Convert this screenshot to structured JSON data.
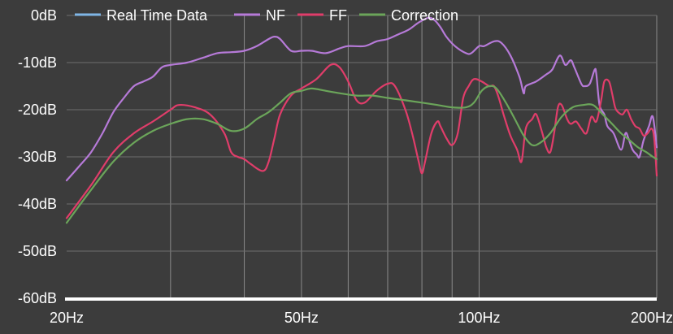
{
  "chart_data": {
    "type": "line",
    "x_scale": "log",
    "xlim": [
      20,
      200
    ],
    "ylim": [
      -60,
      0
    ],
    "y_ticks": [
      0,
      -10,
      -20,
      -30,
      -40,
      -50,
      -60
    ],
    "y_tick_labels": [
      "0dB",
      "-10dB",
      "-20dB",
      "-30dB",
      "-40dB",
      "-50dB",
      "-60dB"
    ],
    "x_tick_labels": [
      {
        "x": 20,
        "label": "20Hz"
      },
      {
        "x": 50,
        "label": "50Hz"
      },
      {
        "x": 100,
        "label": "100Hz"
      },
      {
        "x": 200,
        "label": "200Hz"
      }
    ],
    "x_gridlines": [
      30,
      40,
      50,
      60,
      70,
      80,
      90,
      100,
      200
    ],
    "grid": true,
    "legend_position": "top",
    "series": [
      {
        "name": "Real Time Data",
        "color": "#7fb6e6",
        "points": []
      },
      {
        "name": "NF",
        "color": "#b67ad8",
        "points": [
          [
            20,
            -35
          ],
          [
            21,
            -32
          ],
          [
            22,
            -29
          ],
          [
            23,
            -25
          ],
          [
            24,
            -20.5
          ],
          [
            25,
            -17.5
          ],
          [
            26,
            -15
          ],
          [
            27,
            -14
          ],
          [
            28,
            -13
          ],
          [
            29,
            -11
          ],
          [
            30,
            -10.5
          ],
          [
            32,
            -10
          ],
          [
            34,
            -9
          ],
          [
            36,
            -8
          ],
          [
            38,
            -7.8
          ],
          [
            40,
            -7.5
          ],
          [
            42,
            -6.5
          ],
          [
            44,
            -5
          ],
          [
            45,
            -4.5
          ],
          [
            46,
            -5
          ],
          [
            48,
            -7.5
          ],
          [
            50,
            -7.5
          ],
          [
            52,
            -7.5
          ],
          [
            55,
            -8
          ],
          [
            58,
            -7
          ],
          [
            60,
            -6.5
          ],
          [
            64,
            -6.5
          ],
          [
            67,
            -5.5
          ],
          [
            70,
            -5
          ],
          [
            73,
            -4
          ],
          [
            76,
            -3
          ],
          [
            79,
            -1.5
          ],
          [
            82,
            -0.5
          ],
          [
            84,
            -1
          ],
          [
            86,
            -2.5
          ],
          [
            88,
            -4.5
          ],
          [
            91,
            -6.5
          ],
          [
            95,
            -8
          ],
          [
            97,
            -8
          ],
          [
            100,
            -6.5
          ],
          [
            102,
            -6.5
          ],
          [
            106,
            -5.5
          ],
          [
            109,
            -5.8
          ],
          [
            113,
            -8.5
          ],
          [
            117,
            -13
          ],
          [
            119,
            -16.5
          ],
          [
            120,
            -15
          ],
          [
            125,
            -14
          ],
          [
            130,
            -12.5
          ],
          [
            133,
            -11.5
          ],
          [
            137,
            -8.5
          ],
          [
            140,
            -10.5
          ],
          [
            143,
            -9.5
          ],
          [
            145,
            -11
          ],
          [
            149,
            -14.5
          ],
          [
            151,
            -15
          ],
          [
            154,
            -14.5
          ],
          [
            157,
            -11.5
          ],
          [
            158,
            -12.5
          ],
          [
            160,
            -19
          ],
          [
            163,
            -21
          ],
          [
            165,
            -23.5
          ],
          [
            169,
            -25
          ],
          [
            174,
            -28.5
          ],
          [
            177,
            -25
          ],
          [
            179,
            -26
          ],
          [
            182,
            -28.5
          ],
          [
            185,
            -29.5
          ],
          [
            187,
            -30
          ],
          [
            190,
            -26.5
          ],
          [
            194,
            -23.5
          ],
          [
            197,
            -21.5
          ],
          [
            200,
            -28
          ]
        ]
      },
      {
        "name": "FF",
        "color": "#e03d6a",
        "points": [
          [
            20,
            -43
          ],
          [
            22,
            -36
          ],
          [
            24,
            -29
          ],
          [
            26,
            -25
          ],
          [
            28,
            -22.5
          ],
          [
            30,
            -20
          ],
          [
            31,
            -19
          ],
          [
            33,
            -19.5
          ],
          [
            35,
            -21
          ],
          [
            37,
            -25
          ],
          [
            38,
            -29
          ],
          [
            39,
            -30
          ],
          [
            40,
            -30.5
          ],
          [
            41,
            -31.5
          ],
          [
            43,
            -33
          ],
          [
            44,
            -31
          ],
          [
            45,
            -26
          ],
          [
            46,
            -21
          ],
          [
            48,
            -17
          ],
          [
            50,
            -15.5
          ],
          [
            53,
            -13.5
          ],
          [
            56,
            -10.5
          ],
          [
            58,
            -11
          ],
          [
            60,
            -14
          ],
          [
            62,
            -18
          ],
          [
            64,
            -18.5
          ],
          [
            67,
            -16
          ],
          [
            70,
            -14.5
          ],
          [
            72,
            -15
          ],
          [
            75,
            -20
          ],
          [
            77,
            -25
          ],
          [
            79,
            -31
          ],
          [
            80,
            -33.5
          ],
          [
            81,
            -31
          ],
          [
            83,
            -25
          ],
          [
            85,
            -22.5
          ],
          [
            86,
            -23.5
          ],
          [
            88,
            -26
          ],
          [
            90,
            -27.5
          ],
          [
            92,
            -25
          ],
          [
            94,
            -17.5
          ],
          [
            96,
            -15
          ],
          [
            98,
            -13.5
          ],
          [
            101,
            -14
          ],
          [
            104,
            -15
          ],
          [
            106,
            -15
          ],
          [
            108,
            -17.5
          ],
          [
            110,
            -21
          ],
          [
            113,
            -25.5
          ],
          [
            116,
            -28.5
          ],
          [
            118,
            -31
          ],
          [
            120,
            -24
          ],
          [
            123,
            -22
          ],
          [
            125,
            -21
          ],
          [
            128,
            -25
          ],
          [
            130,
            -28
          ],
          [
            132,
            -29
          ],
          [
            134,
            -25
          ],
          [
            136,
            -19.5
          ],
          [
            138,
            -19
          ],
          [
            141,
            -22
          ],
          [
            143,
            -23
          ],
          [
            146,
            -22.5
          ],
          [
            149,
            -24
          ],
          [
            152,
            -25
          ],
          [
            155,
            -21.5
          ],
          [
            158,
            -22.5
          ],
          [
            161,
            -18
          ],
          [
            163,
            -14
          ],
          [
            166,
            -14
          ],
          [
            168,
            -16.5
          ],
          [
            170,
            -19.5
          ],
          [
            172,
            -20.5
          ],
          [
            175,
            -21
          ],
          [
            178,
            -20
          ],
          [
            181,
            -22
          ],
          [
            184,
            -23.5
          ],
          [
            187,
            -24
          ],
          [
            190,
            -25.5
          ],
          [
            193,
            -25
          ],
          [
            196,
            -24
          ],
          [
            198,
            -26
          ],
          [
            200,
            -34
          ]
        ]
      },
      {
        "name": "Correction",
        "color": "#6ba55a",
        "points": [
          [
            20,
            -44
          ],
          [
            22,
            -37
          ],
          [
            24,
            -31
          ],
          [
            26,
            -27
          ],
          [
            28,
            -24.5
          ],
          [
            30,
            -23
          ],
          [
            32,
            -22
          ],
          [
            34,
            -22
          ],
          [
            36,
            -23
          ],
          [
            38,
            -24.5
          ],
          [
            40,
            -24
          ],
          [
            42,
            -22
          ],
          [
            44,
            -20.5
          ],
          [
            46,
            -18.5
          ],
          [
            48,
            -16.5
          ],
          [
            50,
            -16
          ],
          [
            52,
            -15.5
          ],
          [
            55,
            -16
          ],
          [
            58,
            -16.5
          ],
          [
            62,
            -17
          ],
          [
            66,
            -17
          ],
          [
            70,
            -17.5
          ],
          [
            75,
            -18
          ],
          [
            80,
            -18.5
          ],
          [
            85,
            -19
          ],
          [
            90,
            -19.5
          ],
          [
            95,
            -19.5
          ],
          [
            98,
            -18.5
          ],
          [
            101,
            -16
          ],
          [
            104,
            -15
          ],
          [
            107,
            -15.5
          ],
          [
            111,
            -18.5
          ],
          [
            115,
            -22
          ],
          [
            119,
            -25.5
          ],
          [
            123,
            -27.5
          ],
          [
            127,
            -27
          ],
          [
            132,
            -25
          ],
          [
            138,
            -21.5
          ],
          [
            144,
            -19.5
          ],
          [
            150,
            -19
          ],
          [
            156,
            -19
          ],
          [
            162,
            -21
          ],
          [
            168,
            -23
          ],
          [
            174,
            -25
          ],
          [
            180,
            -26.5
          ],
          [
            186,
            -28
          ],
          [
            192,
            -29
          ],
          [
            197,
            -30
          ],
          [
            200,
            -30.5
          ]
        ]
      }
    ]
  }
}
